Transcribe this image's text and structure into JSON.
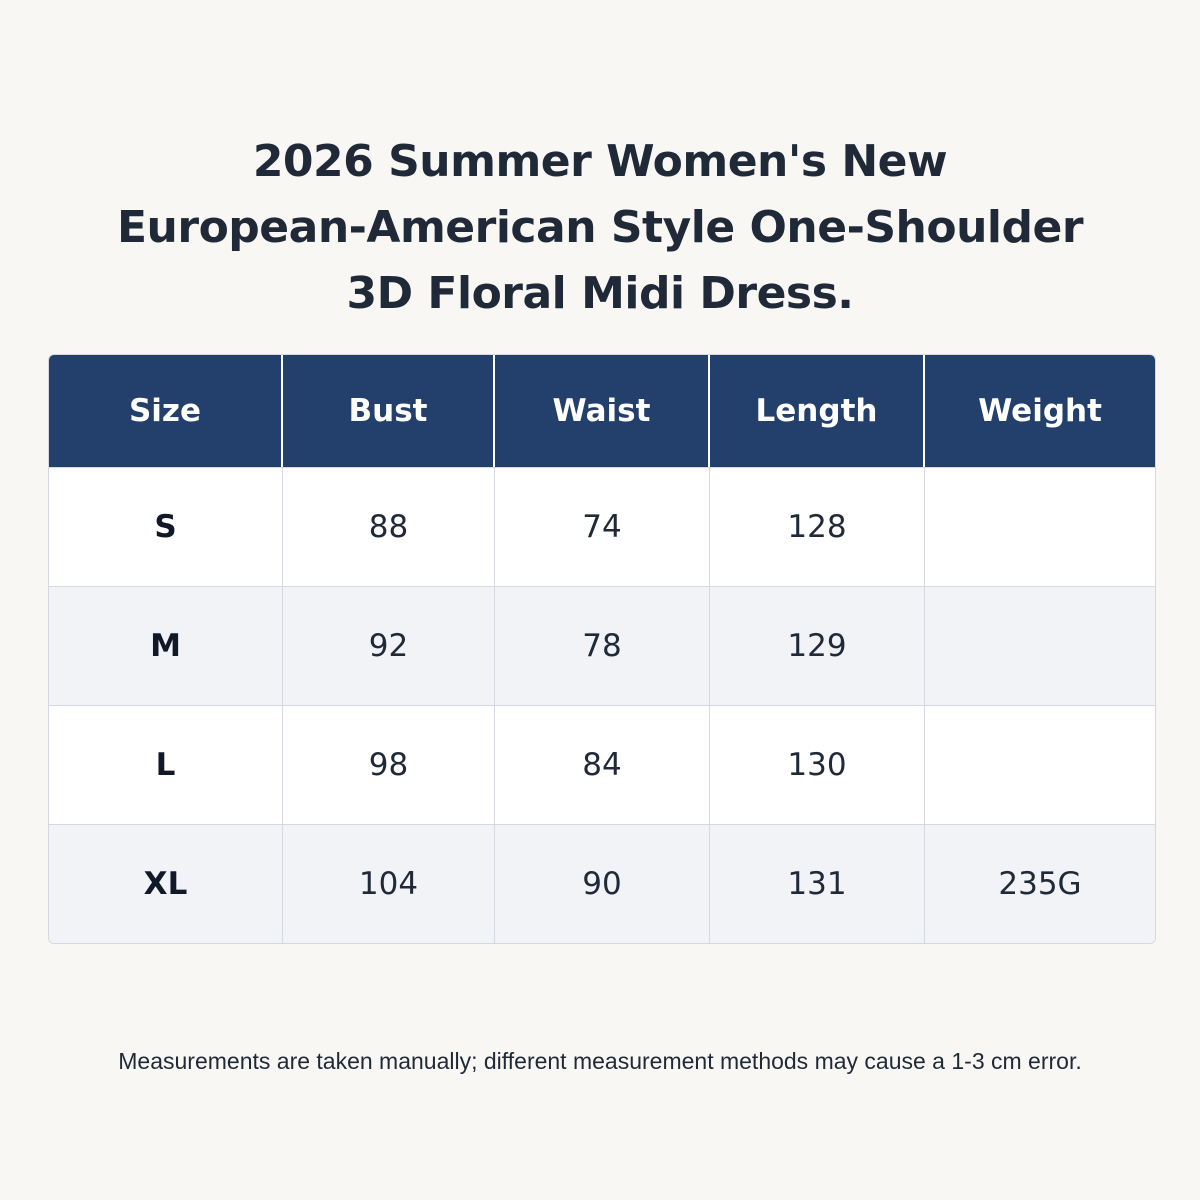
{
  "title": {
    "line1": "2026 Summer Women's New",
    "line2": "European-American Style One-Shoulder",
    "line3": "3D Floral Midi Dress."
  },
  "table": {
    "headers": [
      "Size",
      "Bust",
      "Waist",
      "Length",
      "Weight"
    ],
    "rows": [
      {
        "size": "S",
        "bust": "88",
        "waist": "74",
        "length": "128",
        "weight": ""
      },
      {
        "size": "M",
        "bust": "92",
        "waist": "78",
        "length": "129",
        "weight": ""
      },
      {
        "size": "L",
        "bust": "98",
        "waist": "84",
        "length": "130",
        "weight": ""
      },
      {
        "size": "XL",
        "bust": "104",
        "waist": "90",
        "length": "131",
        "weight": "235G"
      }
    ]
  },
  "note": "Measurements are taken manually; different measurement methods may cause a 1-3 cm error.",
  "colors": {
    "header_bg": "#233f6b",
    "header_text": "#ffffff",
    "page_bg": "#f8f7f4",
    "row_alt_bg": "#f1f3f7",
    "text": "#1f2937"
  }
}
